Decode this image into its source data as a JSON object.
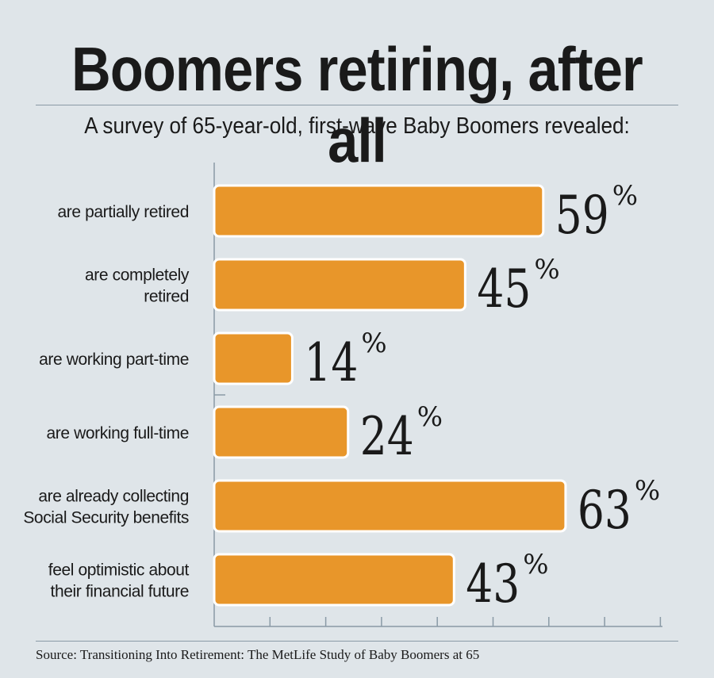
{
  "title": "Boomers retiring, after all",
  "subtitle": "A survey of 65-year-old, first-wave Baby Boomers revealed:",
  "source": "Source: Transitioning Into Retirement: The MetLife Study of Baby Boomers at 65",
  "colors": {
    "bar": "#e8962a",
    "bar_border": "#ffffff",
    "background": "#dfe5e9",
    "axis": "#8a9aa6",
    "text": "#1a1a1a"
  },
  "chart_data": {
    "type": "bar",
    "orientation": "horizontal",
    "categories": [
      [
        "are partially retired"
      ],
      [
        "are completely",
        "retired"
      ],
      [
        "are working part-time"
      ],
      [
        "are working full-time"
      ],
      [
        "are already collecting",
        "Social Security benefits"
      ],
      [
        "feel optimistic about",
        "their financial future"
      ]
    ],
    "values": [
      59,
      45,
      14,
      24,
      63,
      43
    ],
    "value_suffix": "%",
    "xlim": [
      0,
      80
    ],
    "grid": false
  }
}
